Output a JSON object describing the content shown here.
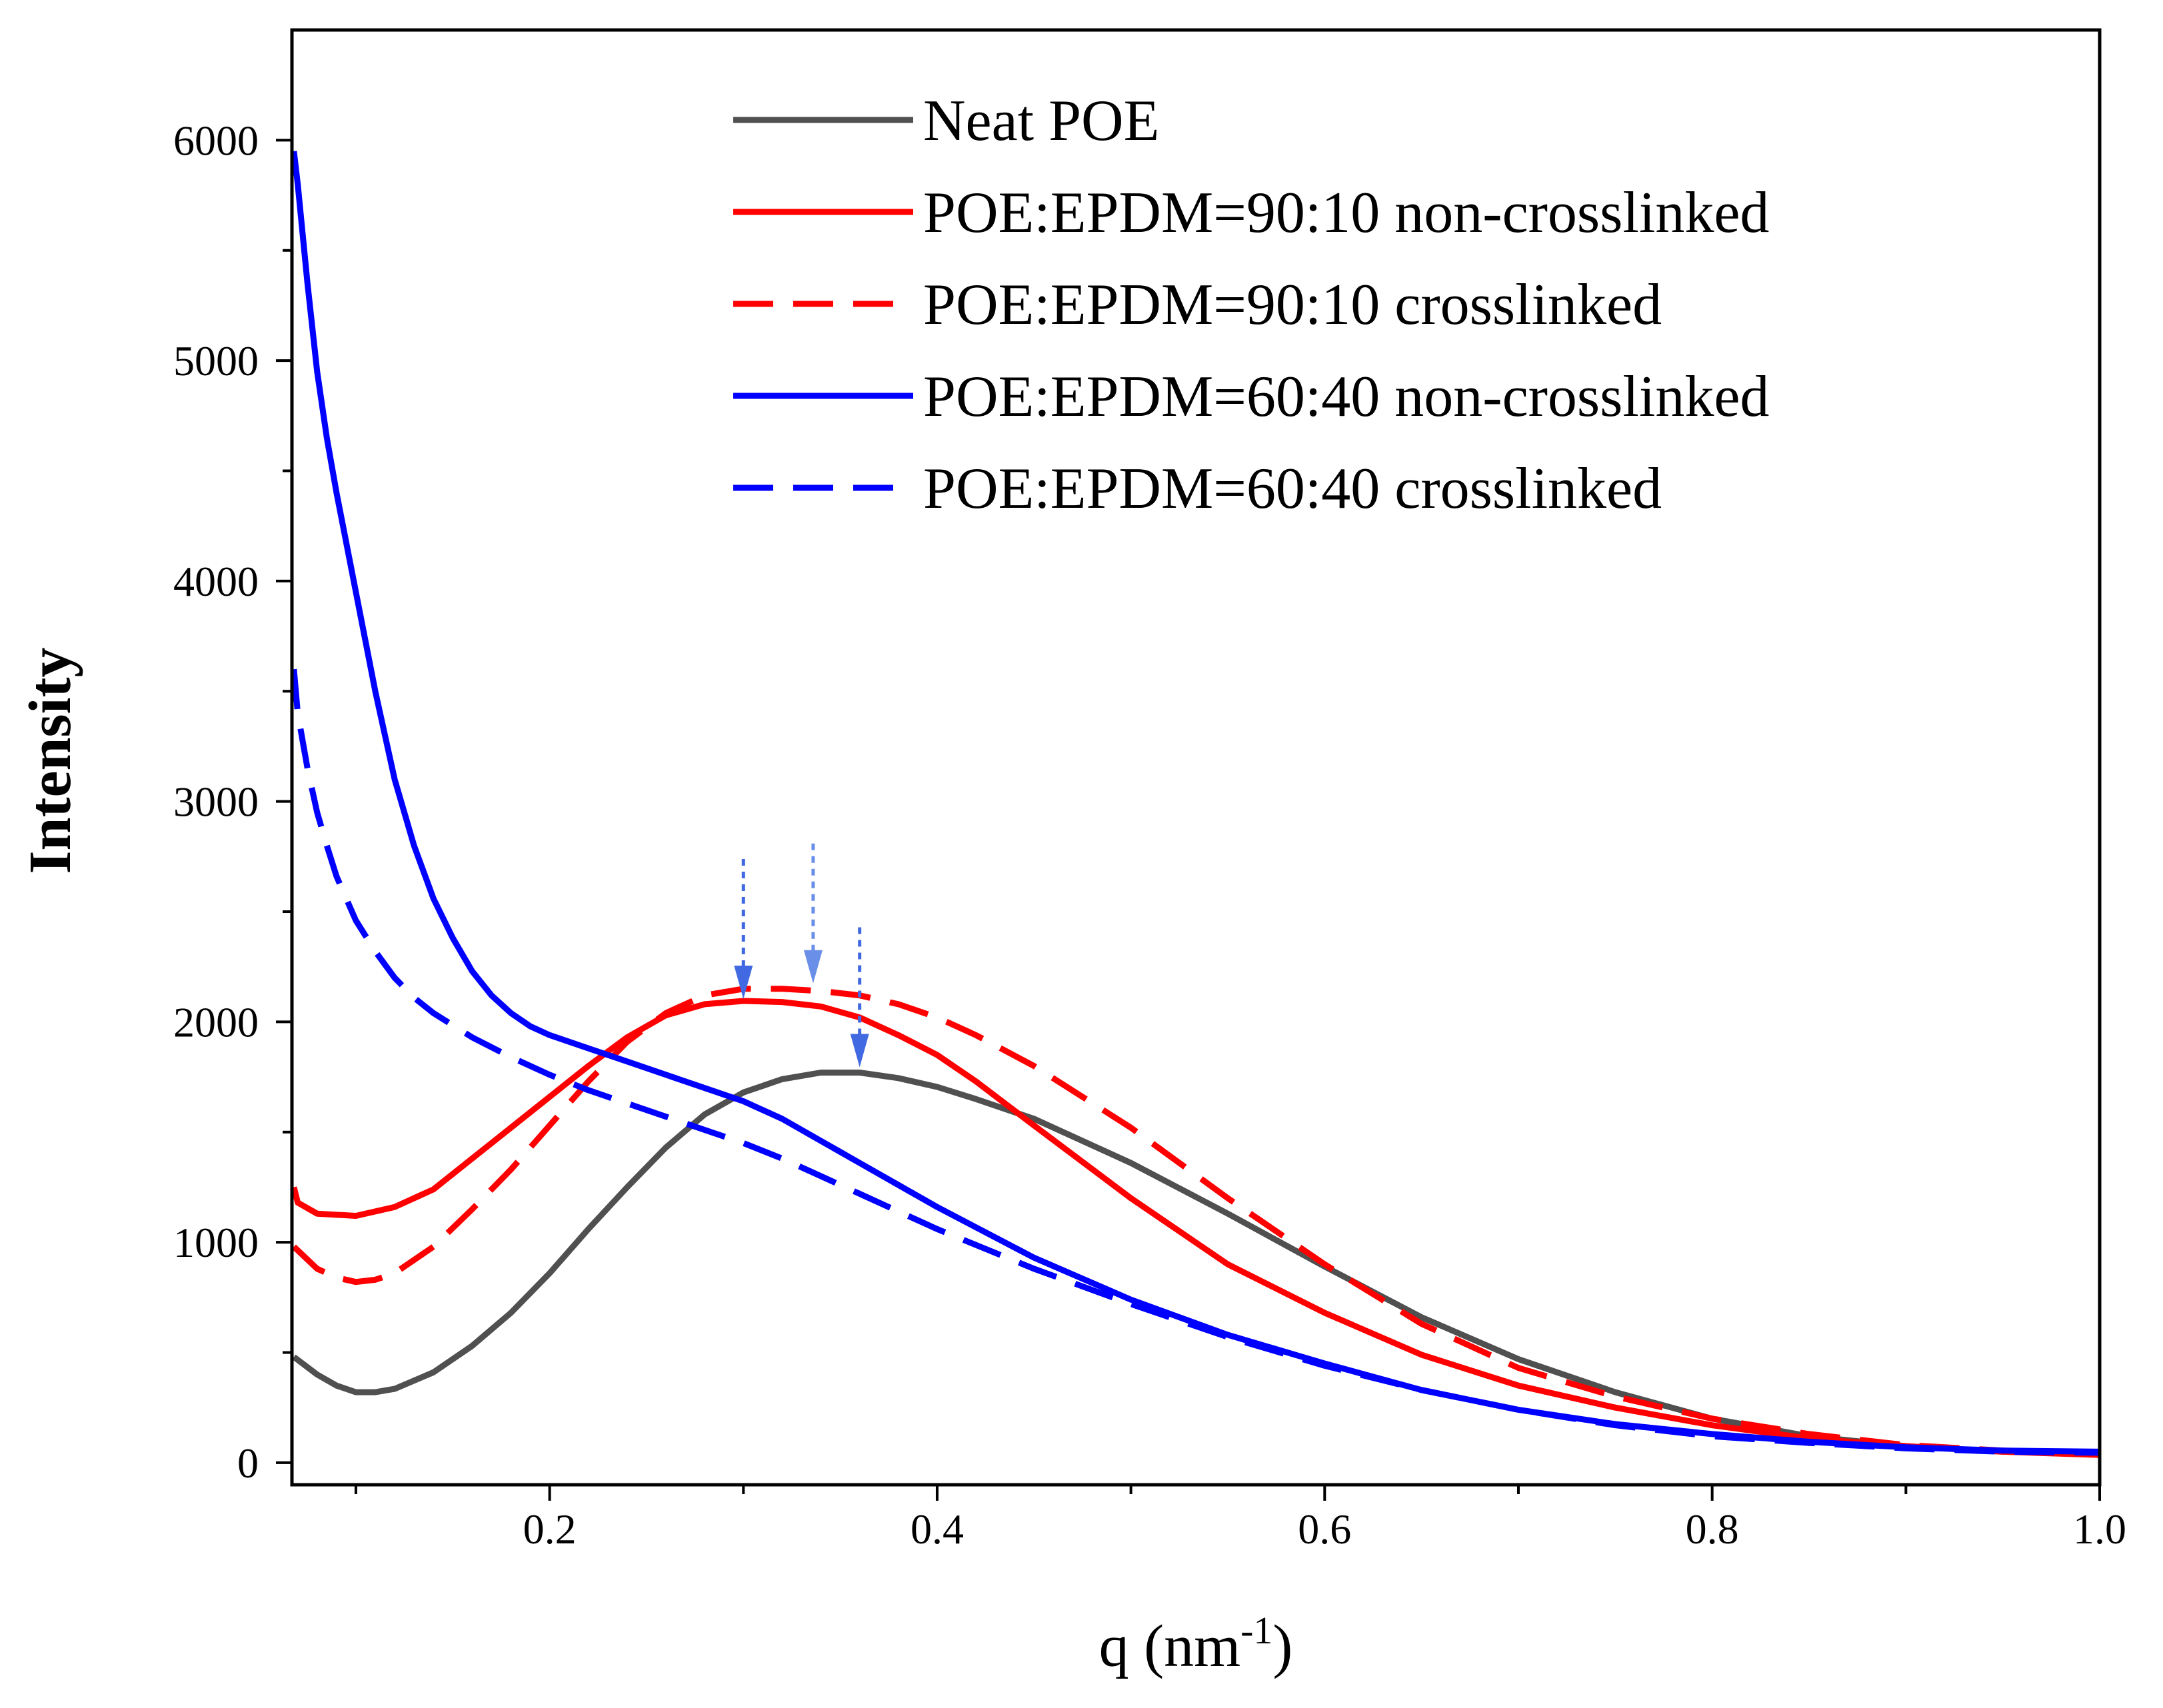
{
  "chart_data": {
    "type": "line",
    "xlabel": "q (nm",
    "xlabel_sup": "-1",
    "xlabel_end": ")",
    "ylabel": "Intensity",
    "xlim": [
      0.067,
      1.0
    ],
    "ylim": [
      -100,
      6500
    ],
    "x_ticks": [
      0.2,
      0.4,
      0.6,
      0.8,
      1.0
    ],
    "x_tick_labels": [
      "0.2",
      "0.4",
      "0.6",
      "0.8",
      "1.0"
    ],
    "x_minor_ticks": [
      0.1,
      0.3,
      0.5,
      0.7,
      0.9
    ],
    "y_ticks": [
      0,
      1000,
      2000,
      3000,
      4000,
      5000,
      6000
    ],
    "y_tick_labels": [
      "0",
      "1000",
      "2000",
      "3000",
      "4000",
      "5000",
      "6000"
    ],
    "legend_position": "top-right",
    "series": [
      {
        "name": "Neat POE",
        "color": "#505050",
        "style": "solid",
        "x": [
          0.068,
          0.08,
          0.09,
          0.1,
          0.11,
          0.12,
          0.14,
          0.16,
          0.18,
          0.2,
          0.22,
          0.24,
          0.26,
          0.28,
          0.3,
          0.32,
          0.34,
          0.36,
          0.38,
          0.4,
          0.42,
          0.45,
          0.5,
          0.55,
          0.6,
          0.65,
          0.7,
          0.75,
          0.8,
          0.85,
          0.9,
          0.95,
          1.0
        ],
        "y": [
          480,
          400,
          350,
          320,
          320,
          335,
          410,
          530,
          680,
          860,
          1060,
          1250,
          1430,
          1580,
          1680,
          1740,
          1770,
          1770,
          1745,
          1705,
          1650,
          1560,
          1360,
          1130,
          890,
          660,
          470,
          320,
          200,
          120,
          75,
          50,
          40
        ]
      },
      {
        "name": "POE:EPDM=90:10 non-crosslinked",
        "color": "#ff0000",
        "style": "solid",
        "x": [
          0.068,
          0.07,
          0.08,
          0.1,
          0.12,
          0.14,
          0.16,
          0.18,
          0.2,
          0.22,
          0.24,
          0.26,
          0.28,
          0.3,
          0.32,
          0.34,
          0.36,
          0.38,
          0.4,
          0.42,
          0.45,
          0.5,
          0.55,
          0.6,
          0.65,
          0.7,
          0.75,
          0.8,
          0.85,
          0.9,
          0.95,
          1.0
        ],
        "y": [
          1250,
          1180,
          1130,
          1120,
          1160,
          1240,
          1380,
          1520,
          1660,
          1800,
          1930,
          2030,
          2080,
          2095,
          2090,
          2070,
          2020,
          1940,
          1850,
          1730,
          1530,
          1200,
          900,
          680,
          490,
          350,
          250,
          170,
          110,
          75,
          50,
          35
        ]
      },
      {
        "name": "POE:EPDM=90:10 crosslinked",
        "color": "#ff0000",
        "style": "dashed",
        "x": [
          0.068,
          0.08,
          0.09,
          0.1,
          0.11,
          0.12,
          0.14,
          0.16,
          0.18,
          0.2,
          0.22,
          0.24,
          0.26,
          0.28,
          0.3,
          0.32,
          0.34,
          0.36,
          0.38,
          0.4,
          0.42,
          0.45,
          0.5,
          0.55,
          0.6,
          0.65,
          0.7,
          0.75,
          0.8,
          0.85,
          0.9,
          0.95,
          1.0
        ],
        "y": [
          980,
          880,
          840,
          820,
          830,
          860,
          980,
          1150,
          1330,
          1530,
          1730,
          1910,
          2040,
          2120,
          2150,
          2150,
          2140,
          2120,
          2080,
          2020,
          1940,
          1800,
          1520,
          1200,
          900,
          630,
          430,
          300,
          200,
          130,
          80,
          55,
          40
        ]
      },
      {
        "name": "POE:EPDM=60:40 non-crosslinked",
        "color": "#0000ff",
        "style": "solid",
        "x": [
          0.068,
          0.07,
          0.075,
          0.08,
          0.085,
          0.09,
          0.1,
          0.11,
          0.12,
          0.13,
          0.14,
          0.15,
          0.16,
          0.17,
          0.18,
          0.19,
          0.2,
          0.22,
          0.24,
          0.26,
          0.28,
          0.3,
          0.32,
          0.34,
          0.36,
          0.38,
          0.4,
          0.45,
          0.5,
          0.55,
          0.6,
          0.65,
          0.7,
          0.75,
          0.8,
          0.85,
          0.9,
          0.95,
          1.0
        ],
        "y": [
          5950,
          5800,
          5350,
          4950,
          4650,
          4400,
          3950,
          3500,
          3100,
          2800,
          2560,
          2380,
          2230,
          2120,
          2040,
          1980,
          1940,
          1880,
          1820,
          1760,
          1700,
          1640,
          1560,
          1460,
          1360,
          1260,
          1160,
          930,
          740,
          580,
          450,
          330,
          240,
          175,
          130,
          95,
          70,
          55,
          50
        ]
      },
      {
        "name": "POE:EPDM=60:40 crosslinked",
        "color": "#0000ff",
        "style": "dashed",
        "x": [
          0.068,
          0.07,
          0.075,
          0.08,
          0.085,
          0.09,
          0.1,
          0.11,
          0.12,
          0.13,
          0.14,
          0.16,
          0.18,
          0.2,
          0.22,
          0.24,
          0.26,
          0.28,
          0.3,
          0.32,
          0.34,
          0.36,
          0.38,
          0.4,
          0.45,
          0.5,
          0.55,
          0.6,
          0.65,
          0.7,
          0.75,
          0.8,
          0.85,
          0.9,
          0.95,
          1.0
        ],
        "y": [
          3600,
          3400,
          3150,
          2950,
          2800,
          2660,
          2460,
          2320,
          2200,
          2110,
          2040,
          1930,
          1840,
          1760,
          1690,
          1630,
          1570,
          1510,
          1450,
          1380,
          1300,
          1220,
          1140,
          1060,
          880,
          720,
          570,
          440,
          330,
          240,
          170,
          120,
          90,
          65,
          50,
          45
        ]
      }
    ],
    "peak_markers": [
      {
        "x": 0.3,
        "y": 2080,
        "color": "#4169e1"
      },
      {
        "x": 0.336,
        "y": 2150,
        "color": "#6a8fe8"
      },
      {
        "x": 0.36,
        "y": 1770,
        "color": "#4169e1"
      }
    ]
  }
}
